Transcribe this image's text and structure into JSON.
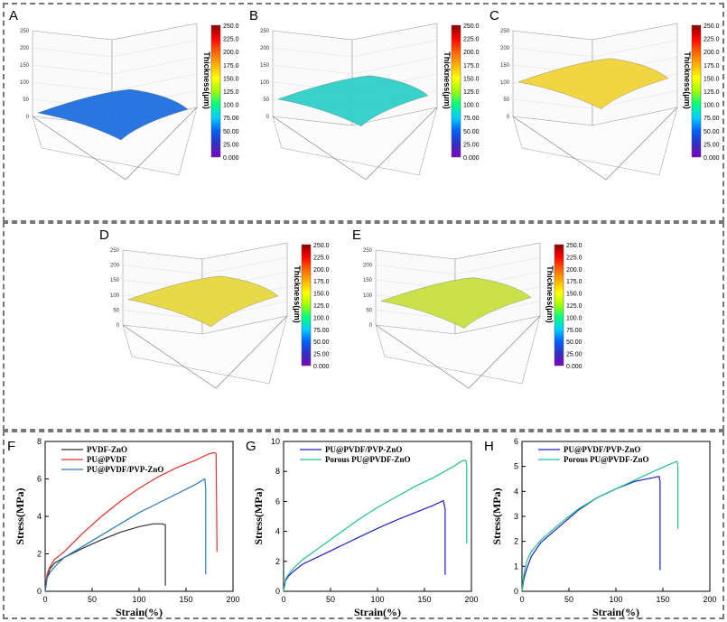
{
  "panels": {
    "A": {
      "label": "A",
      "ylabel": "Thickness(μm)",
      "zticks": [
        "0",
        "50",
        "100",
        "150",
        "200",
        "250"
      ],
      "surface_color": "#1f6fe0",
      "level": 50
    },
    "B": {
      "label": "B",
      "ylabel": "Thickness(μm)",
      "zticks": [
        "0",
        "50",
        "100",
        "150",
        "200",
        "250"
      ],
      "surface_color": "#2fd0c8",
      "level": 90
    },
    "C": {
      "label": "C",
      "ylabel": "Thickness(μm)",
      "zticks": [
        "0",
        "50",
        "100",
        "150",
        "200",
        "250"
      ],
      "surface_color": "#f2d43a",
      "level": 140
    },
    "D": {
      "label": "D",
      "ylabel": "Thickness(μm)",
      "zticks": [
        "0",
        "50",
        "100",
        "150",
        "200",
        "250"
      ],
      "surface_color": "#e8d840",
      "level": 130
    },
    "E": {
      "label": "E",
      "ylabel": "Thickness(μm)",
      "zticks": [
        "0",
        "50",
        "100",
        "150",
        "200",
        "250"
      ],
      "surface_color": "#c8e040",
      "level": 125
    }
  },
  "colorbar": {
    "ticks": [
      "250.0",
      "225.0",
      "200.0",
      "175.0",
      "150.0",
      "125.0",
      "100.0",
      "75.00",
      "50.00",
      "25.00",
      "0.000"
    ],
    "colors": [
      "#8a0000",
      "#ff0000",
      "#ff6000",
      "#ffb000",
      "#ffff00",
      "#a0ff00",
      "#00ff80",
      "#00d0ff",
      "#0060ff",
      "#3030c0",
      "#8000c0"
    ]
  },
  "chart_data": [
    {
      "type": "line",
      "panel": "F",
      "xlabel": "Strain(%)",
      "ylabel": "Stress(MPa)",
      "xlim": [
        0,
        200
      ],
      "ylim": [
        0,
        8
      ],
      "xticks": [
        0,
        50,
        100,
        150,
        200
      ],
      "yticks": [
        0,
        2,
        4,
        6,
        8
      ],
      "series": [
        {
          "name": "PVDF-ZnO",
          "color": "#333333",
          "x": [
            0,
            2,
            5,
            10,
            20,
            40,
            60,
            80,
            100,
            115,
            125,
            128,
            128
          ],
          "y": [
            0,
            0.7,
            1.2,
            1.5,
            1.8,
            2.3,
            2.75,
            3.15,
            3.45,
            3.6,
            3.6,
            3.55,
            0.3
          ]
        },
        {
          "name": "PU@PVDF",
          "color": "#e03030",
          "x": [
            0,
            2,
            5,
            10,
            20,
            40,
            60,
            80,
            100,
            120,
            140,
            160,
            175,
            180,
            182,
            183
          ],
          "y": [
            0,
            0.9,
            1.3,
            1.7,
            2.1,
            3.1,
            4.0,
            4.8,
            5.5,
            6.1,
            6.6,
            7.0,
            7.35,
            7.4,
            7.35,
            2.1
          ]
        },
        {
          "name": "PU@PVDF/PVP-ZnO",
          "color": "#2a7ab8",
          "x": [
            0,
            2,
            5,
            10,
            20,
            40,
            60,
            80,
            100,
            120,
            140,
            160,
            170,
            171,
            171
          ],
          "y": [
            0,
            0.7,
            1.0,
            1.3,
            1.8,
            2.4,
            3.0,
            3.6,
            4.2,
            4.7,
            5.2,
            5.7,
            6.0,
            5.5,
            0.9
          ]
        }
      ]
    },
    {
      "type": "line",
      "panel": "G",
      "xlabel": "Strain(%)",
      "ylabel": "Stress(MPa)",
      "xlim": [
        0,
        200
      ],
      "ylim": [
        0,
        10
      ],
      "xticks": [
        0,
        50,
        100,
        150,
        200
      ],
      "yticks": [
        0,
        2,
        4,
        6,
        8,
        10
      ],
      "series": [
        {
          "name": "PU@PVDF/PVP-ZnO",
          "color": "#2020c0",
          "x": [
            0,
            2,
            5,
            10,
            20,
            40,
            60,
            80,
            100,
            120,
            140,
            160,
            170,
            172,
            172
          ],
          "y": [
            0,
            0.7,
            1.0,
            1.3,
            1.8,
            2.4,
            3.0,
            3.6,
            4.2,
            4.75,
            5.25,
            5.75,
            6.05,
            5.5,
            1.1
          ]
        },
        {
          "name": "Porous PU@PVDF-ZnO",
          "color": "#20c090",
          "x": [
            0,
            2,
            5,
            10,
            20,
            40,
            60,
            80,
            100,
            120,
            140,
            160,
            180,
            190,
            194,
            195,
            195
          ],
          "y": [
            0,
            0.8,
            1.1,
            1.5,
            2.1,
            3.0,
            3.9,
            4.8,
            5.6,
            6.3,
            7.0,
            7.6,
            8.3,
            8.7,
            8.75,
            8.4,
            3.2
          ]
        }
      ]
    },
    {
      "type": "line",
      "panel": "H",
      "xlabel": "Strain(%)",
      "ylabel": "Stress(MPa)",
      "xlim": [
        0,
        200
      ],
      "ylim": [
        0,
        6
      ],
      "xticks": [
        0,
        50,
        100,
        150,
        200
      ],
      "yticks": [
        0,
        1,
        2,
        3,
        4,
        5,
        6
      ],
      "series": [
        {
          "name": "PU@PVDF/PVP-ZnO",
          "color": "#2020c0",
          "x": [
            0,
            2,
            5,
            10,
            20,
            40,
            60,
            80,
            100,
            120,
            140,
            146,
            147,
            147
          ],
          "y": [
            0,
            0.5,
            0.9,
            1.4,
            1.95,
            2.6,
            3.25,
            3.75,
            4.1,
            4.4,
            4.55,
            4.6,
            4.4,
            0.85
          ]
        },
        {
          "name": "Porous PU@PVDF-ZnO",
          "color": "#20c090",
          "x": [
            0,
            2,
            5,
            10,
            20,
            40,
            60,
            80,
            100,
            120,
            140,
            155,
            165,
            166,
            166
          ],
          "y": [
            0,
            0.7,
            1.2,
            1.6,
            2.05,
            2.7,
            3.3,
            3.75,
            4.1,
            4.45,
            4.8,
            5.05,
            5.2,
            5.0,
            2.5
          ]
        }
      ]
    }
  ]
}
